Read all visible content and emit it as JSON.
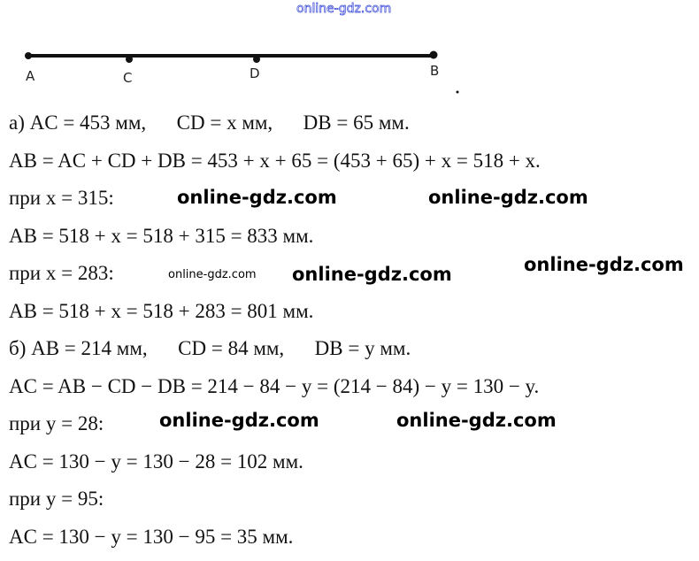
{
  "watermarks": [
    "online-gdz.com",
    "online-gdz.com",
    "online-gdz.com",
    "online-gdz.com",
    "online-gdz.com",
    "online-gdz.com",
    "online-gdz.com",
    "online-gdz.com"
  ],
  "segment": {
    "points": [
      "A",
      "C",
      "D",
      "B"
    ]
  },
  "lines": [
    "а) AC = 453 мм,      CD = x мм,      DB = 65 мм.",
    "AB = AC + CD + DB = 453 + x + 65 = (453 + 65) + x = 518 + x.",
    "при x = 315:",
    "AB = 518 + x = 518 + 315 = 833 мм.",
    "при x = 283:",
    "AB = 518 + x = 518 + 283 = 801 мм.",
    "б) AB = 214 мм,      CD = 84 мм,      DB = y мм.",
    "AC = AB − CD − DB = 214 − 84 − y = (214 − 84) − y = 130 − y.",
    "при y = 28:",
    "AC = 130 − y = 130 − 28 = 102 мм.",
    "при y = 95:",
    "AC = 130 − y = 130 − 95 = 35 мм."
  ]
}
